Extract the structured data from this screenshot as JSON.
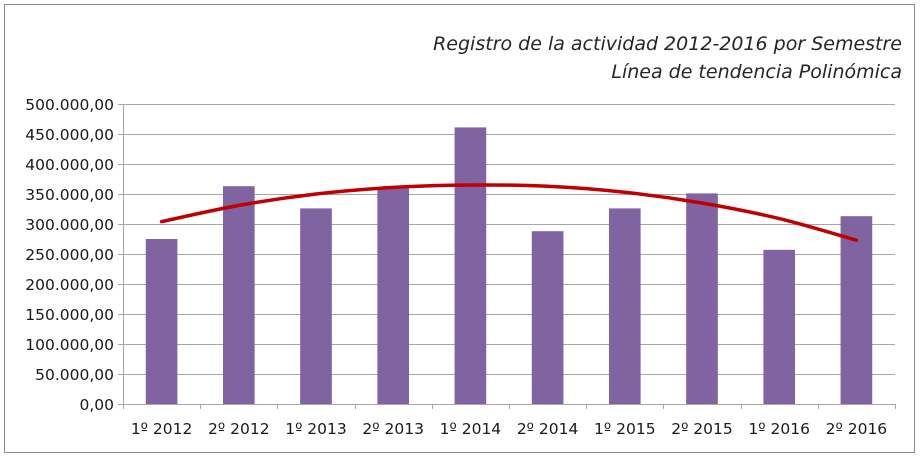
{
  "chart_data": {
    "type": "bar",
    "title": "Registro de la actividad 2012-2016 por Semestre",
    "subtitle": "Línea de tendencia Polinómica",
    "xlabel": "",
    "ylabel": "",
    "ylim": [
      0,
      500000
    ],
    "yticks": [
      0,
      50000,
      100000,
      150000,
      200000,
      250000,
      300000,
      350000,
      400000,
      450000,
      500000
    ],
    "ytick_labels": [
      "0,00",
      "50.000,00",
      "100.000,00",
      "150.000,00",
      "200.000,00",
      "250.000,00",
      "300.000,00",
      "350.000,00",
      "400.000,00",
      "450.000,00",
      "500.000,00"
    ],
    "categories": [
      "1º 2012",
      "2º 2012",
      "1º 2013",
      "2º 2013",
      "1º 2014",
      "2º 2014",
      "1º 2015",
      "2º 2015",
      "1º 2016",
      "2º 2016"
    ],
    "values": [
      275000,
      363000,
      326000,
      360000,
      461000,
      288000,
      326000,
      351000,
      257000,
      313000
    ],
    "trendline": {
      "type": "polynomial",
      "values": [
        304000,
        331000,
        350000,
        361000,
        365000,
        363000,
        353000,
        335000,
        309000,
        273000
      ]
    },
    "grid": true,
    "legend": "none",
    "colors": {
      "bar": "#8064a2",
      "trendline": "#c00000",
      "grid": "#a6a6a6",
      "axis": "#a6a6a6"
    }
  }
}
